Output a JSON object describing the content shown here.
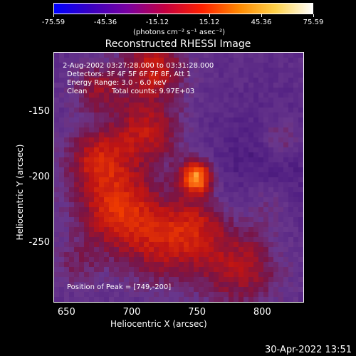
{
  "colorbar": {
    "tick_labels": [
      "-75.59",
      "-45.36",
      "-15.12",
      "15.12",
      "45.36",
      "75.59"
    ],
    "unit_label": "(photons cm⁻² s⁻¹ asec⁻²)",
    "colors": [
      "#0000ff",
      "#3a00c0",
      "#7a00a0",
      "#c40040",
      "#ff2000",
      "#ff8800",
      "#ffd24a",
      "#ffffff"
    ]
  },
  "chart_data": {
    "type": "heatmap",
    "title": "Reconstructed RHESSI Image",
    "xlabel": "Heliocentric X (arcsec)",
    "ylabel": "Heliocentric Y (arcsec)",
    "x_ticks": [
      "650",
      "700",
      "750",
      "800"
    ],
    "y_ticks": [
      "-150",
      "-200",
      "-250"
    ],
    "xlim": [
      640,
      832
    ],
    "ylim": [
      -296,
      -104
    ],
    "value_range": [
      -75.59,
      75.59
    ],
    "peak_position": [
      749,
      -200
    ],
    "grid": false,
    "colormap_preview": "rhessi-fire"
  },
  "annotations": {
    "time_range": "2-Aug-2002 03:27:28.000 to 03:31:28.000",
    "detectors": "Detectors: 3F 4F 5F 6F 7F 8F, Att 1",
    "energy": "Energy Range: 3.0 - 6.0 keV",
    "clean_label": "Clean",
    "total_counts": "Total counts: 9.97E+03",
    "peak_text": "Position of Peak = [749,-200]"
  },
  "footer": {
    "timestamp": "30-Apr-2022 13:51"
  }
}
